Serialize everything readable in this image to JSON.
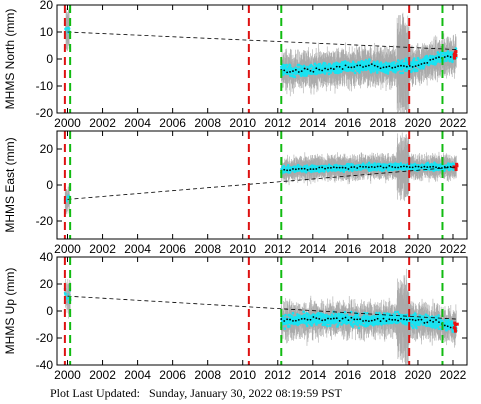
{
  "footer": "Plot Last Updated:   Sunday, January 30, 2022 08:19:59 PST",
  "chart_data": [
    {
      "type": "scatter",
      "ylabel": "MHMS North (mm)",
      "xlim": [
        1999.4,
        2022.8
      ],
      "ylim": [
        -20,
        20
      ],
      "yticks": [
        -20,
        -10,
        0,
        10,
        20
      ],
      "xticks": [
        2000,
        2002,
        2004,
        2006,
        2008,
        2010,
        2012,
        2014,
        2016,
        2018,
        2020,
        2022
      ],
      "trend": {
        "x": [
          2000.0,
          2022.2
        ],
        "y": [
          10,
          3.5
        ]
      },
      "series": [
        {
          "x": [
            1999.85,
            1999.95,
            2000.05,
            2000.15
          ],
          "y": [
            12,
            9,
            11,
            10
          ]
        },
        {
          "x": [
            2012.2,
            2013,
            2014,
            2015,
            2016,
            2017,
            2018,
            2019,
            2020,
            2021,
            2022.2
          ],
          "y": [
            -4,
            -4.5,
            -4,
            -3.5,
            -3,
            -2.5,
            -3,
            -3,
            -2,
            0,
            2
          ]
        }
      ],
      "red_lines": [
        1999.85,
        2010.35,
        2019.5
      ],
      "green_lines": [
        2000.15,
        2012.2,
        2021.4
      ]
    },
    {
      "type": "scatter",
      "ylabel": "MHMS East (mm)",
      "xlim": [
        1999.4,
        2022.8
      ],
      "ylim": [
        -30,
        30
      ],
      "yticks": [
        -20,
        0,
        20
      ],
      "xticks": [
        2000,
        2002,
        2004,
        2006,
        2008,
        2010,
        2012,
        2014,
        2016,
        2018,
        2020,
        2022
      ],
      "trend": {
        "x": [
          2000.0,
          2022.2
        ],
        "y": [
          -8,
          10
        ]
      },
      "series": [
        {
          "x": [
            1999.85,
            1999.95,
            2000.05,
            2000.15
          ],
          "y": [
            -10,
            -8,
            -7,
            -9
          ]
        },
        {
          "x": [
            2012.2,
            2013,
            2014,
            2015,
            2016,
            2017,
            2018,
            2019,
            2020,
            2021,
            2022.2
          ],
          "y": [
            8,
            9,
            9,
            9.5,
            9.5,
            10,
            10,
            10,
            10,
            10,
            10
          ]
        }
      ],
      "red_lines": [
        1999.85,
        2010.35,
        2019.5
      ],
      "green_lines": [
        2000.15,
        2012.2,
        2021.4
      ]
    },
    {
      "type": "scatter",
      "ylabel": "MHMS Up (mm)",
      "xlim": [
        1999.4,
        2022.8
      ],
      "ylim": [
        -40,
        40
      ],
      "yticks": [
        -40,
        -20,
        0,
        20,
        40
      ],
      "xticks": [
        2000,
        2002,
        2004,
        2006,
        2008,
        2010,
        2012,
        2014,
        2016,
        2018,
        2020,
        2022
      ],
      "xticklabels": [
        "2000",
        "2002",
        "2004",
        "2006",
        "2008",
        "2010",
        "2012",
        "2014",
        "2016",
        "2018",
        "2020",
        "2022"
      ],
      "trend": {
        "x": [
          2000.0,
          2022.2
        ],
        "y": [
          11,
          -6
        ]
      },
      "series": [
        {
          "x": [
            1999.85,
            1999.95,
            2000.05,
            2000.15
          ],
          "y": [
            14,
            10,
            12,
            11
          ]
        },
        {
          "x": [
            2012.2,
            2013,
            2014,
            2015,
            2016,
            2017,
            2018,
            2019,
            2020,
            2021,
            2022.2
          ],
          "y": [
            -7,
            -7,
            -6,
            -6,
            -6,
            -7,
            -6,
            -6,
            -7,
            -8,
            -12
          ]
        }
      ],
      "red_lines": [
        1999.85,
        2010.35,
        2019.5
      ],
      "green_lines": [
        2000.15,
        2012.2,
        2021.4
      ]
    }
  ]
}
